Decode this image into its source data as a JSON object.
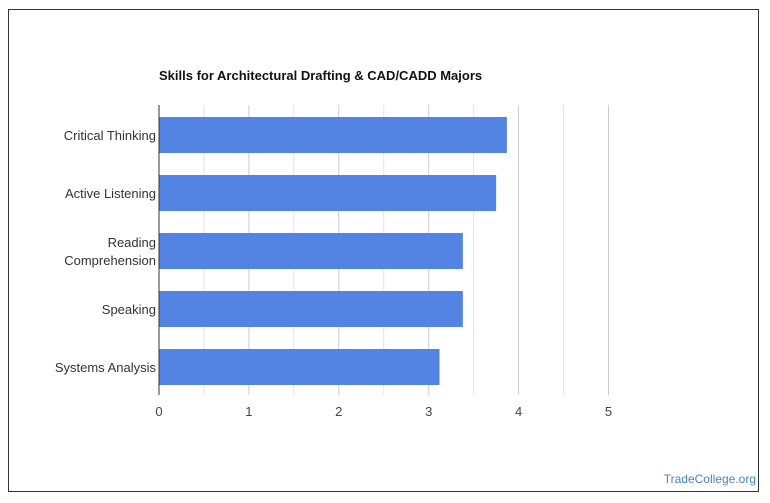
{
  "chart_data": {
    "type": "bar",
    "orientation": "horizontal",
    "title": "Skills for Architectural Drafting & CAD/CADD Majors",
    "categories": [
      [
        "Critical Thinking"
      ],
      [
        "Active Listening"
      ],
      [
        "Reading",
        "Comprehension"
      ],
      [
        "Speaking"
      ],
      [
        "Systems Analysis"
      ]
    ],
    "values": [
      3.87,
      3.75,
      3.38,
      3.38,
      3.12
    ],
    "xlim": [
      0,
      5
    ],
    "x_ticks": [
      "0",
      "1",
      "2",
      "3",
      "4",
      "5"
    ],
    "grid": true,
    "xlabel": "",
    "ylabel": "",
    "bar_color": "#5384e3"
  },
  "watermark": "TradeCollege.org"
}
